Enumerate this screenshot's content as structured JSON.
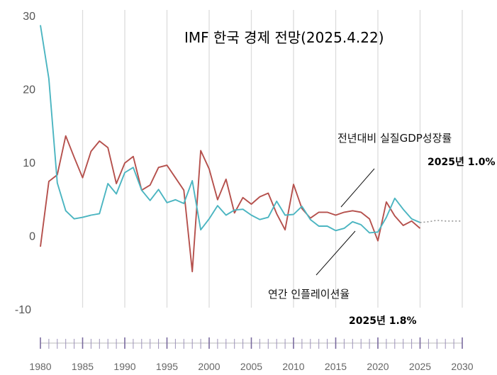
{
  "chart_data": {
    "type": "line",
    "title": "IMF 한국 경제 전망(2025.4.22)",
    "xlabel": "",
    "ylabel": "",
    "xlim": [
      1980,
      2030
    ],
    "ylim": [
      -10,
      30
    ],
    "yticks": [
      -10,
      0,
      10,
      20,
      30
    ],
    "xticks": [
      1980,
      1985,
      1990,
      1995,
      2000,
      2005,
      2010,
      2015,
      2020,
      2025,
      2030
    ],
    "grid": "vertical",
    "series": [
      {
        "name": "전년대비 실질GDP성장률",
        "color": "#b5504c",
        "x": [
          1980,
          1981,
          1982,
          1983,
          1984,
          1985,
          1986,
          1987,
          1988,
          1989,
          1990,
          1991,
          1992,
          1993,
          1994,
          1995,
          1996,
          1997,
          1998,
          1999,
          2000,
          2001,
          2002,
          2003,
          2004,
          2005,
          2006,
          2007,
          2008,
          2009,
          2010,
          2011,
          2012,
          2013,
          2014,
          2015,
          2016,
          2017,
          2018,
          2019,
          2020,
          2021,
          2022,
          2023,
          2024,
          2025
        ],
        "values": [
          -1.5,
          7.4,
          8.3,
          13.6,
          10.7,
          7.9,
          11.5,
          12.9,
          12.0,
          7.1,
          9.9,
          10.8,
          6.2,
          6.9,
          9.3,
          9.6,
          7.9,
          6.2,
          -4.9,
          11.6,
          9.1,
          4.9,
          7.7,
          3.1,
          5.2,
          4.3,
          5.3,
          5.8,
          3.0,
          0.8,
          7.0,
          3.7,
          2.4,
          3.2,
          3.2,
          2.8,
          3.2,
          3.4,
          3.2,
          2.3,
          -0.7,
          4.6,
          2.7,
          1.4,
          2.0,
          1.0
        ]
      },
      {
        "name": "연간 인플레이션율",
        "color": "#4bb5c1",
        "x": [
          1980,
          1981,
          1982,
          1983,
          1984,
          1985,
          1986,
          1987,
          1988,
          1989,
          1990,
          1991,
          1992,
          1993,
          1994,
          1995,
          1996,
          1997,
          1998,
          1999,
          2000,
          2001,
          2002,
          2003,
          2004,
          2005,
          2006,
          2007,
          2008,
          2009,
          2010,
          2011,
          2012,
          2013,
          2014,
          2015,
          2016,
          2017,
          2018,
          2019,
          2020,
          2021,
          2022,
          2023,
          2024,
          2025
        ],
        "values": [
          28.7,
          21.4,
          7.2,
          3.4,
          2.3,
          2.5,
          2.8,
          3.0,
          7.1,
          5.7,
          8.6,
          9.3,
          6.2,
          4.8,
          6.3,
          4.5,
          4.9,
          4.4,
          7.5,
          0.8,
          2.3,
          4.1,
          2.8,
          3.5,
          3.6,
          2.8,
          2.2,
          2.5,
          4.7,
          2.8,
          2.9,
          4.0,
          2.2,
          1.3,
          1.3,
          0.7,
          1.0,
          1.9,
          1.5,
          0.4,
          0.5,
          2.5,
          5.1,
          3.6,
          2.3,
          1.8
        ]
      },
      {
        "name": "",
        "style": "dotted",
        "color": "#999999",
        "x": [
          2025,
          2026,
          2027,
          2028,
          2029,
          2030
        ],
        "values": [
          1.8,
          1.9,
          2.1,
          2.0,
          2.0,
          2.0
        ]
      }
    ],
    "annotations": {
      "gdp_label": "전년대비 실질GDP성장률",
      "gdp_value": "2025년 1.0%",
      "inflation_label": "연간 인플레이션율",
      "inflation_value": "2025년 1.8%"
    }
  }
}
